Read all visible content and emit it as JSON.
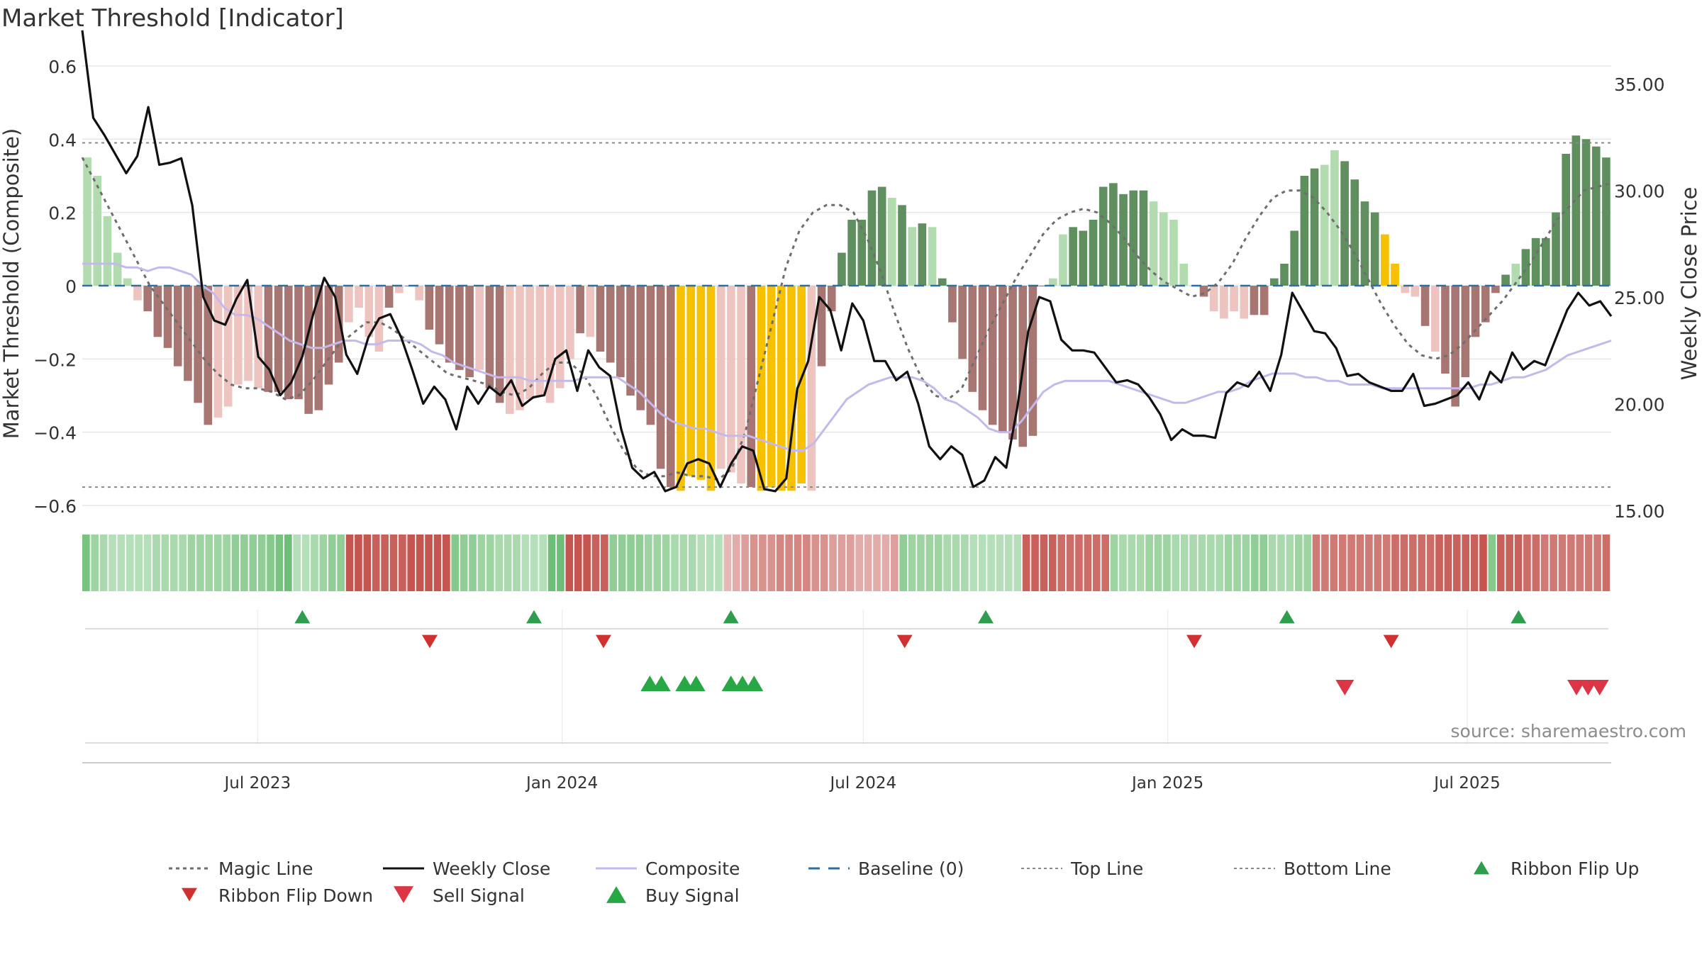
{
  "title": "Market Threshold [Indicator]",
  "source_note": "source: sharemaestro.com",
  "colors": {
    "bg": "#ffffff",
    "grid": "#e6e6e6",
    "text": "#333333",
    "close_line": "#111111",
    "composite_line": "#c5b9ec",
    "magic_line": "#6e6e6e",
    "baseline": "#2e6f9e",
    "threshold_line": "#8a8a8a",
    "bar_strong_pos": "#5f8f5f",
    "bar_weak_pos": "#b2dcb0",
    "bar_strong_neg": "#a87672",
    "bar_weak_neg": "#edc4c0",
    "bar_extreme": "#f5c100",
    "ribbon_up": "#2e9e4e",
    "ribbon_down": "#d03030",
    "sell": "#dc3545",
    "buy": "#28a745"
  },
  "chart_data": {
    "type": "bar",
    "title": "Market Threshold [Indicator]",
    "ylabel": "Market Threshold (Composite)",
    "y2label": "Weekly Close Price",
    "ylim": [
      -0.6,
      0.6
    ],
    "y2lim": [
      15,
      35
    ],
    "yticks": [
      "0.6",
      "0.4",
      "0.2",
      "0",
      "−0.2",
      "−0.4",
      "−0.6"
    ],
    "y2ticks": [
      "35.00",
      "30.00",
      "25.00",
      "20.00",
      "15.00"
    ],
    "x_start": "2023-03-17",
    "x_end": "2025-09-26",
    "xticks": [
      {
        "date": "2023-07-01",
        "label": "Jul 2023"
      },
      {
        "date": "2024-01-01",
        "label": "Jan 2024"
      },
      {
        "date": "2024-07-01",
        "label": "Jul 2024"
      },
      {
        "date": "2025-01-01",
        "label": "Jan 2025"
      },
      {
        "date": "2025-07-01",
        "label": "Jul 2025"
      }
    ],
    "top_line": 0.39,
    "bottom_line": -0.55,
    "composite_values": [
      0.35,
      0.3,
      0.19,
      0.09,
      0.02,
      -0.04,
      -0.07,
      -0.14,
      -0.17,
      -0.22,
      -0.26,
      -0.32,
      -0.38,
      -0.36,
      -0.33,
      -0.27,
      -0.26,
      -0.28,
      -0.29,
      -0.29,
      -0.31,
      -0.31,
      -0.35,
      -0.34,
      -0.27,
      -0.21,
      -0.1,
      -0.06,
      -0.14,
      -0.18,
      -0.06,
      -0.02,
      0.0,
      -0.04,
      -0.12,
      -0.16,
      -0.21,
      -0.23,
      -0.25,
      -0.23,
      -0.28,
      -0.32,
      -0.35,
      -0.34,
      -0.31,
      -0.3,
      -0.32,
      -0.28,
      -0.2,
      -0.13,
      -0.14,
      -0.18,
      -0.21,
      -0.25,
      -0.3,
      -0.34,
      -0.38,
      -0.5,
      -0.55,
      -0.56,
      -0.52,
      -0.53,
      -0.56,
      -0.5,
      -0.51,
      -0.54,
      -0.55,
      -0.56,
      -0.55,
      -0.56,
      -0.56,
      -0.54,
      -0.56,
      -0.22,
      -0.07,
      0.09,
      0.18,
      0.18,
      0.26,
      0.27,
      0.24,
      0.22,
      0.16,
      0.17,
      0.16,
      0.02,
      -0.1,
      -0.2,
      -0.29,
      -0.34,
      -0.38,
      -0.4,
      -0.42,
      -0.44,
      -0.41,
      0.0,
      0.02,
      0.14,
      0.16,
      0.15,
      0.18,
      0.27,
      0.28,
      0.25,
      0.26,
      0.26,
      0.23,
      0.2,
      0.18,
      0.06,
      0.0,
      -0.03,
      -0.07,
      -0.09,
      -0.07,
      -0.09,
      -0.08,
      -0.08,
      0.02,
      0.06,
      0.15,
      0.3,
      0.32,
      0.33,
      0.37,
      0.34,
      0.29,
      0.23,
      0.2,
      0.14,
      0.06,
      -0.02,
      -0.03,
      -0.11,
      -0.18,
      -0.24,
      -0.33,
      -0.25,
      -0.14,
      -0.1,
      -0.02,
      0.03,
      0.06,
      0.1,
      0.13,
      0.13,
      0.2,
      0.36,
      0.41,
      0.4,
      0.38,
      0.35
    ],
    "bar_categories": "ssssssmmmmmmmsssssmmmmmmmmssssmsmsmmmmmsmmsssssssmsmmmmmmmmxxxxsssmxxxxxsmmmmmmmsmsmsmmmmmmmmmmmssmmmmmmmmsssssmssssmmmmmmmssmmmmxxssmsmmmmmmmsmmmmmmmmmmmxxxs",
    "weekly_close": [
      37.5,
      33.4,
      32.6,
      31.7,
      30.8,
      31.6,
      33.9,
      31.2,
      31.3,
      31.5,
      29.3,
      25.0,
      23.9,
      23.7,
      24.9,
      25.8,
      22.2,
      21.6,
      20.4,
      21.0,
      22.2,
      24.2,
      25.9,
      25.0,
      22.3,
      21.4,
      23.1,
      24.0,
      24.2,
      23.1,
      21.6,
      20.0,
      20.8,
      20.2,
      18.8,
      20.8,
      20.0,
      20.8,
      20.4,
      21.1,
      19.9,
      20.3,
      20.4,
      22.1,
      22.5,
      20.6,
      22.5,
      21.7,
      21.3,
      18.8,
      17.0,
      16.5,
      16.8,
      15.9,
      16.1,
      17.2,
      17.4,
      17.2,
      16.1,
      17.2,
      18.0,
      17.8,
      16.0,
      15.9,
      16.5,
      20.7,
      22.0,
      25.0,
      24.4,
      22.5,
      24.7,
      23.9,
      22.0,
      22.0,
      21.1,
      21.5,
      20.0,
      18.0,
      17.4,
      18.0,
      17.6,
      16.1,
      16.4,
      17.5,
      17.0,
      19.8,
      23.4,
      25.0,
      24.8,
      23.0,
      22.5,
      22.5,
      22.4,
      21.7,
      21.0,
      21.1,
      20.9,
      20.3,
      19.5,
      18.3,
      18.8,
      18.5,
      18.5,
      18.4,
      20.5,
      21.0,
      20.8,
      21.5,
      20.6,
      22.3,
      25.2,
      24.3,
      23.4,
      23.3,
      22.6,
      21.3,
      21.4,
      21.0,
      20.8,
      20.6,
      20.6,
      21.4,
      19.9,
      20.0,
      20.2,
      20.4,
      21.0,
      20.2,
      21.5,
      21.0,
      22.4,
      21.6,
      22.0,
      21.8,
      23.1,
      24.4,
      25.2,
      24.6,
      24.8,
      24.1
    ],
    "composite_line": [
      0.06,
      0.06,
      0.06,
      0.06,
      0.05,
      0.05,
      0.04,
      0.05,
      0.05,
      0.04,
      0.03,
      0.0,
      -0.02,
      -0.06,
      -0.08,
      -0.08,
      -0.09,
      -0.11,
      -0.13,
      -0.15,
      -0.16,
      -0.17,
      -0.17,
      -0.16,
      -0.15,
      -0.15,
      -0.16,
      -0.16,
      -0.15,
      -0.15,
      -0.15,
      -0.16,
      -0.18,
      -0.19,
      -0.21,
      -0.22,
      -0.23,
      -0.24,
      -0.25,
      -0.25,
      -0.25,
      -0.26,
      -0.26,
      -0.26,
      -0.26,
      -0.26,
      -0.25,
      -0.25,
      -0.25,
      -0.25,
      -0.27,
      -0.29,
      -0.32,
      -0.35,
      -0.37,
      -0.38,
      -0.39,
      -0.39,
      -0.4,
      -0.41,
      -0.41,
      -0.41,
      -0.42,
      -0.43,
      -0.44,
      -0.45,
      -0.45,
      -0.43,
      -0.39,
      -0.35,
      -0.31,
      -0.29,
      -0.27,
      -0.26,
      -0.25,
      -0.25,
      -0.25,
      -0.26,
      -0.28,
      -0.31,
      -0.32,
      -0.34,
      -0.36,
      -0.39,
      -0.4,
      -0.4,
      -0.37,
      -0.33,
      -0.29,
      -0.27,
      -0.26,
      -0.26,
      -0.26,
      -0.26,
      -0.26,
      -0.27,
      -0.28,
      -0.29,
      -0.3,
      -0.31,
      -0.32,
      -0.32,
      -0.31,
      -0.3,
      -0.29,
      -0.29,
      -0.28,
      -0.26,
      -0.25,
      -0.24,
      -0.24,
      -0.24,
      -0.25,
      -0.25,
      -0.26,
      -0.26,
      -0.27,
      -0.27,
      -0.27,
      -0.28,
      -0.28,
      -0.28,
      -0.28,
      -0.28,
      -0.28,
      -0.28,
      -0.28,
      -0.28,
      -0.27,
      -0.27,
      -0.26,
      -0.25,
      -0.25,
      -0.24,
      -0.23,
      -0.21,
      -0.19,
      -0.18,
      -0.17,
      -0.16,
      -0.15
    ],
    "magic_line": [
      0.35,
      0.28,
      0.21,
      0.14,
      0.07,
      0.0,
      -0.05,
      -0.1,
      -0.15,
      -0.2,
      -0.24,
      -0.27,
      -0.28,
      -0.28,
      -0.29,
      -0.31,
      -0.3,
      -0.26,
      -0.21,
      -0.16,
      -0.13,
      -0.1,
      -0.1,
      -0.12,
      -0.15,
      -0.18,
      -0.21,
      -0.24,
      -0.25,
      -0.26,
      -0.27,
      -0.29,
      -0.3,
      -0.28,
      -0.24,
      -0.21,
      -0.21,
      -0.24,
      -0.3,
      -0.38,
      -0.45,
      -0.5,
      -0.52,
      -0.52,
      -0.51,
      -0.52,
      -0.52,
      -0.53,
      -0.5,
      -0.4,
      -0.25,
      -0.1,
      0.05,
      0.15,
      0.2,
      0.22,
      0.22,
      0.2,
      0.13,
      0.04,
      -0.07,
      -0.17,
      -0.25,
      -0.3,
      -0.31,
      -0.28,
      -0.2,
      -0.12,
      -0.05,
      0.02,
      0.08,
      0.14,
      0.18,
      0.2,
      0.21,
      0.2,
      0.17,
      0.13,
      0.08,
      0.04,
      0.01,
      -0.01,
      -0.03,
      -0.02,
      0.01,
      0.06,
      0.13,
      0.19,
      0.24,
      0.26,
      0.26,
      0.24,
      0.2,
      0.15,
      0.09,
      0.02,
      -0.05,
      -0.11,
      -0.16,
      -0.19,
      -0.2,
      -0.19,
      -0.16,
      -0.12,
      -0.08,
      -0.04,
      0.01,
      0.06,
      0.12,
      0.18,
      0.22,
      0.26,
      0.27,
      0.28
    ],
    "ribbon_flip_up": [
      "2023-07-28",
      "2023-12-15",
      "2024-04-12",
      "2024-09-13",
      "2025-03-14",
      "2025-08-01"
    ],
    "ribbon_flip_down": [
      "2023-10-13",
      "2024-01-26",
      "2024-07-26",
      "2025-01-17",
      "2025-05-16"
    ],
    "buy_signals": [
      "2024-02-23",
      "2024-03-01",
      "2024-03-15",
      "2024-03-22",
      "2024-04-12",
      "2024-04-19",
      "2024-04-26"
    ],
    "sell_signals": [
      "2025-04-18",
      "2025-09-05",
      "2025-09-12",
      "2025-09-19"
    ],
    "legend": [
      {
        "label": "Magic Line",
        "kind": "dotted",
        "color": "#6e6e6e"
      },
      {
        "label": "Weekly Close",
        "kind": "solid",
        "color": "#111111"
      },
      {
        "label": "Composite",
        "kind": "solid",
        "color": "#c5b9ec"
      },
      {
        "label": "Baseline (0)",
        "kind": "dashed",
        "color": "#2e6f9e"
      },
      {
        "label": "Top Line",
        "kind": "dotted-thin",
        "color": "#8a8a8a"
      },
      {
        "label": "Bottom Line",
        "kind": "dotted-thin",
        "color": "#8a8a8a"
      },
      {
        "label": "Ribbon Flip Up",
        "kind": "tri-up",
        "color": "#2e9e4e"
      },
      {
        "label": "Ribbon Flip Down",
        "kind": "tri-down",
        "color": "#d03030"
      },
      {
        "label": "Sell Signal",
        "kind": "tri-down",
        "color": "#dc3545"
      },
      {
        "label": "Buy Signal",
        "kind": "tri-up",
        "color": "#28a745"
      }
    ],
    "ribbon_colors": [
      "#c4554f",
      "#c8615b",
      "#cc6d68",
      "#d07a75",
      "#d48682",
      "#d9938f",
      "#dd9f9c",
      "#e1aca9",
      "#e6b8b6",
      "#eac5c3",
      "#eed1d0",
      "#f3dedd",
      "#b5dfb8",
      "#a9d9ad",
      "#9dd4a2",
      "#91ce97",
      "#85c98c",
      "#79c381",
      "#6dbe76"
    ],
    "ribbon_levels": [
      6,
      3,
      2,
      1,
      1,
      1,
      1,
      1,
      2,
      2,
      2,
      2,
      3,
      3,
      3,
      3,
      3,
      4,
      4,
      4,
      4,
      5,
      6,
      7,
      8,
      8,
      9,
      10,
      11,
      11,
      -11,
      -11,
      -11,
      -10,
      -10,
      -10,
      -10,
      -11,
      -11,
      -11,
      -11,
      -11,
      12,
      11,
      11,
      10,
      10,
      9,
      9,
      9,
      8,
      8,
      8,
      7,
      7,
      -11,
      -11,
      -11,
      -10,
      -10,
      11,
      11,
      11,
      11,
      10,
      10,
      10,
      9,
      9,
      9,
      8,
      8,
      8,
      -3,
      -4,
      -5,
      -6,
      -6,
      -6,
      -7,
      -7,
      -7,
      -7,
      -6,
      -6,
      -5,
      -5,
      -5,
      -4,
      -4,
      -4,
      -4,
      -5,
      11,
      10,
      10,
      10,
      10,
      9,
      9,
      9,
      8,
      8,
      8,
      8,
      8,
      8,
      -10,
      -10,
      -10,
      -10,
      -9,
      -9,
      -9,
      -9,
      -9,
      -9,
      10,
      9,
      9,
      9,
      10,
      10,
      10,
      9,
      9,
      9,
      9,
      9,
      9,
      10,
      10,
      10,
      11,
      11,
      9,
      9,
      9,
      10,
      10,
      -8,
      -8,
      -8,
      -8,
      -8,
      -8,
      -8,
      -8,
      -8,
      -9,
      -9,
      -9,
      -9,
      -9,
      -10,
      -10,
      -10,
      -10,
      -10,
      -11,
      12,
      -10,
      -10,
      -10,
      -9,
      -9,
      -8,
      -8,
      -8,
      -8,
      -8,
      -8,
      -8,
      -9
    ]
  }
}
